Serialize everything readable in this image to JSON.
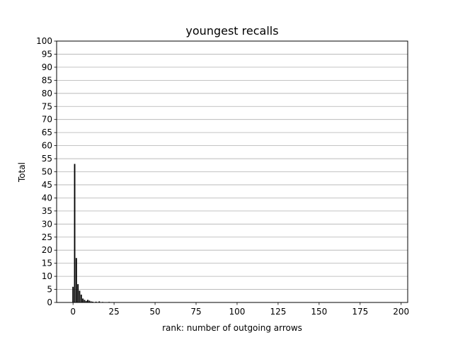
{
  "chart_data": {
    "type": "bar",
    "title": "youngest recalls",
    "xlabel": "rank: number of outgoing arrows",
    "ylabel": "Total",
    "xlim": [
      -10,
      204
    ],
    "ylim": [
      0,
      100
    ],
    "xticks": [
      0,
      25,
      50,
      75,
      100,
      125,
      150,
      175,
      200
    ],
    "yticks": [
      0,
      5,
      10,
      15,
      20,
      25,
      30,
      35,
      40,
      45,
      50,
      55,
      60,
      65,
      70,
      75,
      80,
      85,
      90,
      95,
      100
    ],
    "grid": "y",
    "bar_color": "#000000",
    "x": [
      0,
      1,
      2,
      3,
      4,
      5,
      6,
      7,
      8,
      9,
      10,
      11,
      12,
      14,
      16,
      18,
      22
    ],
    "values": [
      6,
      53,
      17,
      7,
      4.5,
      3,
      1.5,
      1,
      0.6,
      1,
      0.7,
      0.4,
      0.3,
      0.3,
      0.4,
      0.2,
      0.2
    ]
  }
}
